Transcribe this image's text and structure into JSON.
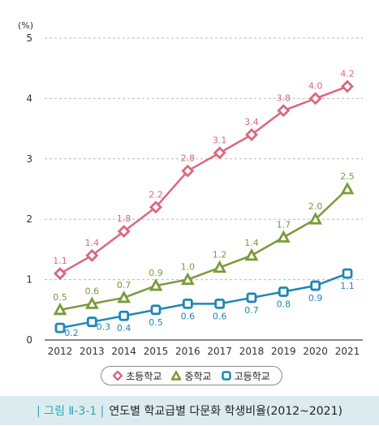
{
  "chart_data": {
    "type": "line",
    "x": [
      "2012",
      "2013",
      "2014",
      "2015",
      "2016",
      "2017",
      "2018",
      "2019",
      "2020",
      "2021"
    ],
    "ylabel": "(%)",
    "ylim": [
      0,
      5
    ],
    "yticks": [
      "0",
      "1",
      "2",
      "3",
      "4",
      "5"
    ],
    "grid": true,
    "legend_position": "bottom",
    "series": [
      {
        "name": "초등학교",
        "color": "#d9687f",
        "marker": "diamond",
        "values": [
          1.1,
          1.4,
          1.8,
          2.2,
          2.8,
          3.1,
          3.4,
          3.8,
          4.0,
          4.2
        ],
        "labels": [
          "1.1",
          "1.4",
          "1.8",
          "2.2",
          "2.8",
          "3.1",
          "3.4",
          "3.8",
          "4.0",
          "4.2"
        ]
      },
      {
        "name": "중학교",
        "color": "#7a9a3a",
        "marker": "triangle",
        "values": [
          0.5,
          0.6,
          0.7,
          0.9,
          1.0,
          1.2,
          1.4,
          1.7,
          2.0,
          2.5
        ],
        "labels": [
          "0.5",
          "0.6",
          "0.7",
          "0.9",
          "1.0",
          "1.2",
          "1.4",
          "1.7",
          "2.0",
          "2.5"
        ]
      },
      {
        "name": "고등학교",
        "color": "#1f87b3",
        "marker": "square",
        "values": [
          0.2,
          0.3,
          0.4,
          0.5,
          0.6,
          0.6,
          0.7,
          0.8,
          0.9,
          1.1
        ],
        "labels": [
          "0.2",
          "0.3",
          "0.4",
          "0.5",
          "0.6",
          "0.6",
          "0.7",
          "0.8",
          "0.9",
          "1.1"
        ]
      }
    ]
  },
  "caption": {
    "figure": "| 그림 Ⅱ-3-1 |",
    "title": "연도별 학교급별 다문화 학생비율(2012~2021)"
  }
}
